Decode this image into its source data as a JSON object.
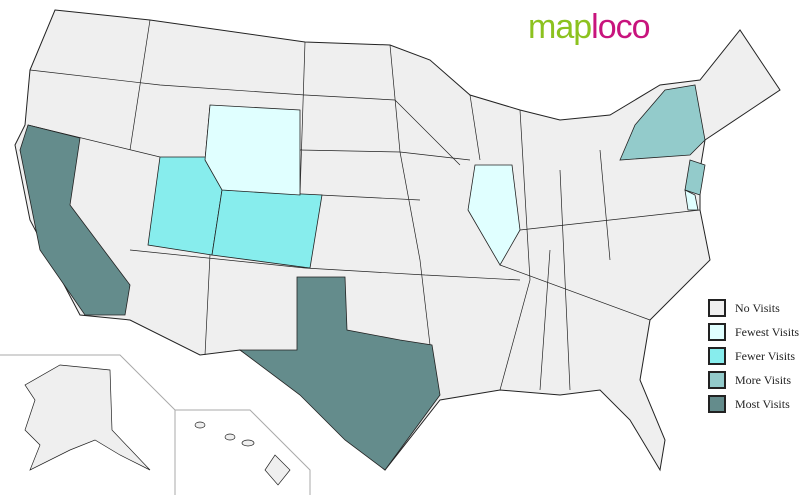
{
  "logo": {
    "part1": "map",
    "part2": "loco"
  },
  "colors": {
    "none": "#efefef",
    "fewest": "#e0ffff",
    "fewer": "#87eded",
    "more": "#93cbcb",
    "most": "#648c8c",
    "border": "#222222"
  },
  "legend": [
    {
      "label": "No Visits",
      "level": "none"
    },
    {
      "label": "Fewest Visits",
      "level": "fewest"
    },
    {
      "label": "Fewer Visits",
      "level": "fewer"
    },
    {
      "label": "More Visits",
      "level": "more"
    },
    {
      "label": "Most Visits",
      "level": "most"
    }
  ],
  "states": [
    {
      "name": "California",
      "level": "most"
    },
    {
      "name": "Texas",
      "level": "most"
    },
    {
      "name": "Utah",
      "level": "fewer"
    },
    {
      "name": "Colorado",
      "level": "fewer"
    },
    {
      "name": "Wyoming",
      "level": "fewest"
    },
    {
      "name": "Illinois",
      "level": "fewest"
    },
    {
      "name": "New York",
      "level": "more"
    },
    {
      "name": "New Jersey",
      "level": "more"
    },
    {
      "name": "Delaware",
      "level": "fewest"
    }
  ]
}
